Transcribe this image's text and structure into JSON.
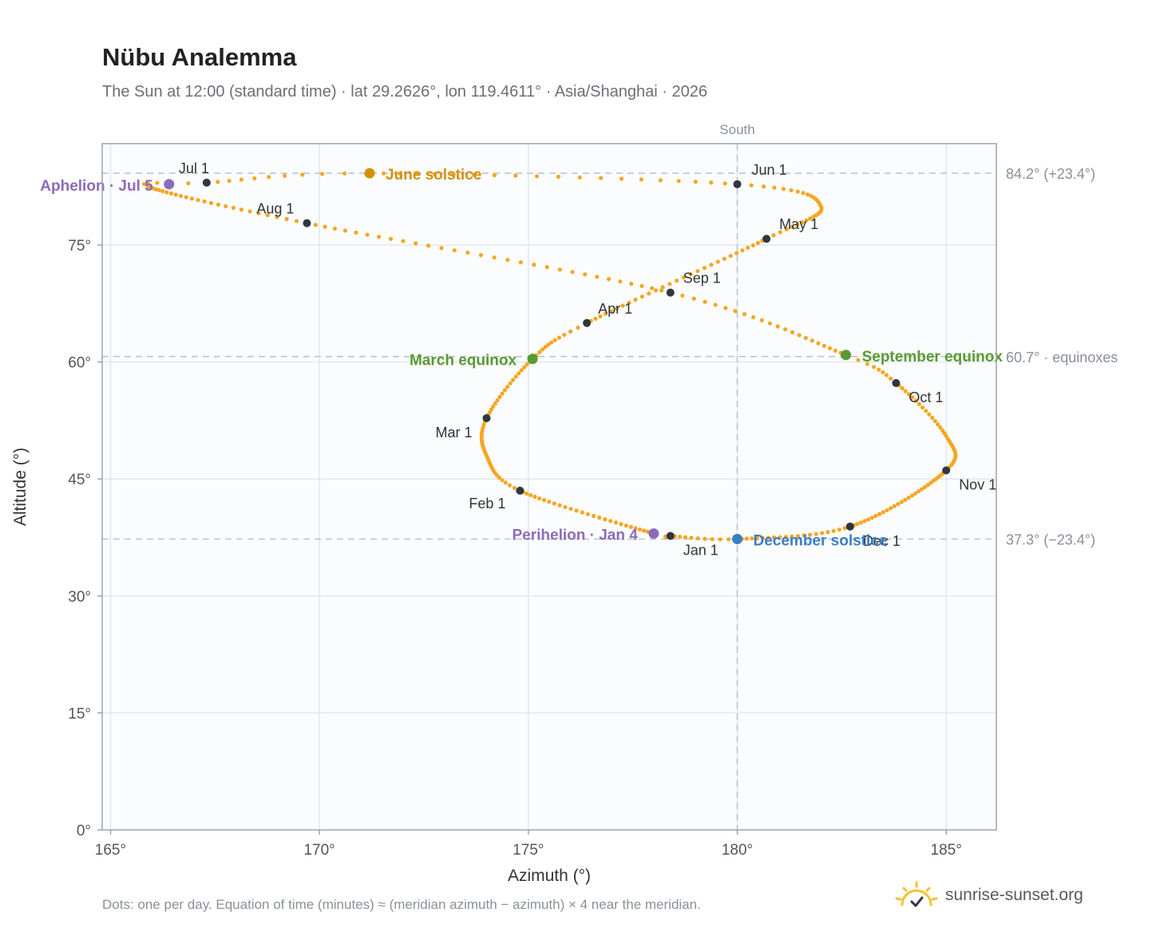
{
  "header": {
    "title": "Nübu Analemma",
    "subtitle": "The Sun at 12:00 (standard time) · lat 29.2626°, lon 119.4611° · Asia/Shanghai · 2026"
  },
  "footer": {
    "note": "Dots: one per day. Equation of time (minutes) ≈ (meridian azimuth − azimuth) × 4 near the meridian.",
    "brand": "sunrise-sunset.org"
  },
  "colors": {
    "path": "#f5a623",
    "month_marker": "#2f3640",
    "equinox": "#5a9a32",
    "june_solstice": "#d4900b",
    "december_solstice": "#3a7fc4",
    "apsis": "#8e6bb8",
    "reference_line": "#b8c2cc",
    "plot_bg": "#fafcfe",
    "grid": "#e3e8ee",
    "frame": "#9aa4b0"
  },
  "chart_data": {
    "type": "scatter",
    "xlabel": "Azimuth (°)",
    "ylabel": "Altitude (°)",
    "xlim": [
      164.8,
      186.2
    ],
    "ylim": [
      0,
      88
    ],
    "x_ticks": [
      165,
      170,
      175,
      180,
      185
    ],
    "x_tick_labels": [
      "165°",
      "170°",
      "175°",
      "180°",
      "185°"
    ],
    "y_ticks": [
      0,
      15,
      30,
      45,
      60,
      75
    ],
    "y_tick_labels": [
      "0°",
      "15°",
      "30°",
      "45°",
      "60°",
      "75°"
    ],
    "grid": true,
    "meridian": {
      "azimuth": 180,
      "label": "South"
    },
    "reference_lines": [
      {
        "altitude": 84.2,
        "label": "84.2° (+23.4°)"
      },
      {
        "altitude": 60.7,
        "label": "60.7° · equinoxes"
      },
      {
        "altitude": 37.3,
        "label": "37.3° (−23.4°)"
      }
    ],
    "month_markers": [
      {
        "label": "Jan 1",
        "azimuth": 178.4,
        "altitude": 37.7
      },
      {
        "label": "Feb 1",
        "azimuth": 174.8,
        "altitude": 43.5
      },
      {
        "label": "Mar 1",
        "azimuth": 174.0,
        "altitude": 52.8
      },
      {
        "label": "Apr 1",
        "azimuth": 176.4,
        "altitude": 65.0
      },
      {
        "label": "May 1",
        "azimuth": 180.7,
        "altitude": 75.8
      },
      {
        "label": "Jun 1",
        "azimuth": 180.0,
        "altitude": 82.8
      },
      {
        "label": "Jul 1",
        "azimuth": 167.3,
        "altitude": 83.0
      },
      {
        "label": "Aug 1",
        "azimuth": 169.7,
        "altitude": 77.8
      },
      {
        "label": "Sep 1",
        "azimuth": 178.4,
        "altitude": 68.9
      },
      {
        "label": "Oct 1",
        "azimuth": 183.8,
        "altitude": 57.3
      },
      {
        "label": "Nov 1",
        "azimuth": 185.0,
        "altitude": 46.1
      },
      {
        "label": "Dec 1",
        "azimuth": 182.7,
        "altitude": 38.9
      }
    ],
    "events": [
      {
        "label": "March equinox",
        "azimuth": 175.1,
        "altitude": 60.4
      },
      {
        "label": "June solstice",
        "azimuth": 171.2,
        "altitude": 84.2
      },
      {
        "label": "September equinox",
        "azimuth": 182.6,
        "altitude": 60.9
      },
      {
        "label": "December solstice",
        "azimuth": 180.0,
        "altitude": 37.3
      },
      {
        "label": "Perihelion · Jan 4",
        "azimuth": 178.0,
        "altitude": 38.0
      },
      {
        "label": "Aphelion · Jul 5",
        "azimuth": 166.4,
        "altitude": 82.8
      }
    ],
    "path_anchors": [
      {
        "day": 0,
        "azimuth": 178.4,
        "altitude": 37.7
      },
      {
        "day": 3,
        "azimuth": 178.0,
        "altitude": 38.0
      },
      {
        "day": 31,
        "azimuth": 174.8,
        "altitude": 43.5
      },
      {
        "day": 45,
        "azimuth": 174.0,
        "altitude": 48.0
      },
      {
        "day": 59,
        "azimuth": 174.0,
        "altitude": 52.8
      },
      {
        "day": 78,
        "azimuth": 175.1,
        "altitude": 60.4
      },
      {
        "day": 90,
        "azimuth": 176.4,
        "altitude": 65.0
      },
      {
        "day": 120,
        "azimuth": 180.7,
        "altitude": 75.8
      },
      {
        "day": 136,
        "azimuth": 182.0,
        "altitude": 80.0
      },
      {
        "day": 151,
        "azimuth": 180.0,
        "altitude": 82.8
      },
      {
        "day": 171,
        "azimuth": 171.2,
        "altitude": 84.2
      },
      {
        "day": 181,
        "azimuth": 167.3,
        "altitude": 83.0
      },
      {
        "day": 187,
        "azimuth": 165.9,
        "altitude": 82.5
      },
      {
        "day": 212,
        "azimuth": 169.7,
        "altitude": 77.8
      },
      {
        "day": 243,
        "azimuth": 178.4,
        "altitude": 68.9
      },
      {
        "day": 265,
        "azimuth": 182.6,
        "altitude": 60.9
      },
      {
        "day": 273,
        "azimuth": 183.8,
        "altitude": 57.3
      },
      {
        "day": 290,
        "azimuth": 185.0,
        "altitude": 50.5
      },
      {
        "day": 304,
        "azimuth": 185.0,
        "altitude": 46.1
      },
      {
        "day": 334,
        "azimuth": 182.7,
        "altitude": 38.9
      },
      {
        "day": 354,
        "azimuth": 180.0,
        "altitude": 37.3
      },
      {
        "day": 364,
        "azimuth": 178.4,
        "altitude": 37.7
      }
    ]
  }
}
